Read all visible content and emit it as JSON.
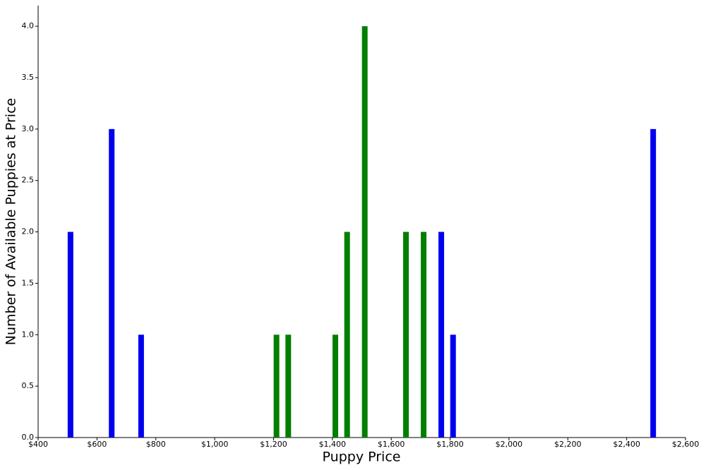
{
  "chart_data": {
    "type": "bar",
    "x_label": "Puppy Price",
    "y_label": "Number of Available Puppies at Price",
    "series": [
      {
        "color": "#0000ee",
        "x": [
          510,
          650,
          750,
          1770,
          1810,
          2490
        ],
        "values": [
          2,
          3,
          1,
          2,
          1,
          3
        ]
      },
      {
        "color": "#007f00",
        "x": [
          1210,
          1250,
          1410,
          1450,
          1510,
          1650,
          1710
        ],
        "values": [
          1,
          1,
          1,
          2,
          4,
          2,
          2
        ]
      }
    ],
    "xlim": [
      400,
      2600
    ],
    "xticks": [
      {
        "value": 400,
        "label": "$400"
      },
      {
        "value": 600,
        "label": "$600"
      },
      {
        "value": 800,
        "label": "$800"
      },
      {
        "value": 1000,
        "label": "$1,000"
      },
      {
        "value": 1200,
        "label": "$1,200"
      },
      {
        "value": 1400,
        "label": "$1,400"
      },
      {
        "value": 1600,
        "label": "$1,600"
      },
      {
        "value": 1800,
        "label": "$1,800"
      },
      {
        "value": 2000,
        "label": "$2,000"
      },
      {
        "value": 2200,
        "label": "$2,200"
      },
      {
        "value": 2400,
        "label": "$2,400"
      },
      {
        "value": 2600,
        "label": "$2,600"
      }
    ],
    "ylim": [
      0,
      4.2
    ],
    "yticks": [
      {
        "value": 0,
        "label": "0.0"
      },
      {
        "value": 0.5,
        "label": "0.5"
      },
      {
        "value": 1,
        "label": "1.0"
      },
      {
        "value": 1.5,
        "label": "1.5"
      },
      {
        "value": 2,
        "label": "2.0"
      },
      {
        "value": 2.5,
        "label": "2.5"
      },
      {
        "value": 3,
        "label": "3.0"
      },
      {
        "value": 3.5,
        "label": "3.5"
      },
      {
        "value": 4,
        "label": "4.0"
      }
    ],
    "grid": false
  }
}
